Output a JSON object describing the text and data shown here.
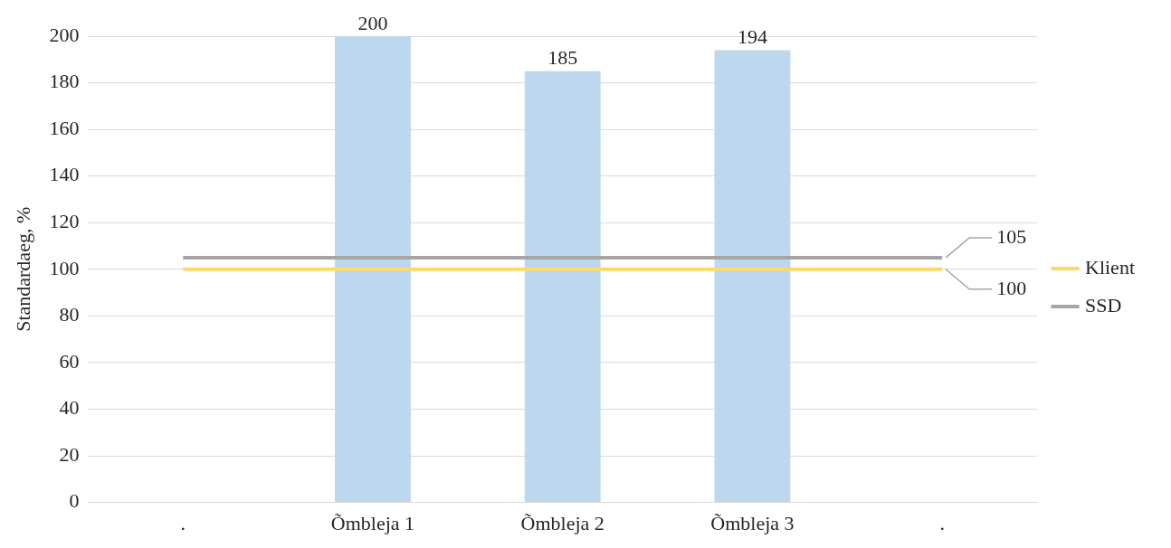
{
  "chart_data": {
    "type": "bar",
    "ylabel": "Standardaeg, %",
    "categories": [
      ".",
      "Õmbleja 1",
      "Õmbleja 2",
      "Õmbleja 3",
      "."
    ],
    "series": [
      {
        "color": "#bdd7ee",
        "values": [
          null,
          200,
          185,
          194,
          null
        ],
        "value_labels": [
          null,
          "200",
          "185",
          "194",
          null
        ]
      },
      {
        "type": "line",
        "name": "Klient",
        "color": "#ffd966",
        "values": [
          100,
          100,
          100,
          100,
          100
        ],
        "value_labels": [
          null,
          null,
          null,
          null,
          "100"
        ]
      },
      {
        "type": "line",
        "name": "SSD",
        "color": "#a5a5a5",
        "values": [
          105,
          105,
          105,
          105,
          105
        ],
        "value_labels": [
          null,
          null,
          null,
          null,
          "105"
        ]
      }
    ],
    "ylim": [
      0,
      200
    ],
    "yticks": [
      0,
      20,
      40,
      60,
      80,
      100,
      120,
      140,
      160,
      180,
      200
    ],
    "grid": "y",
    "legend": "right",
    "marker": "none"
  }
}
